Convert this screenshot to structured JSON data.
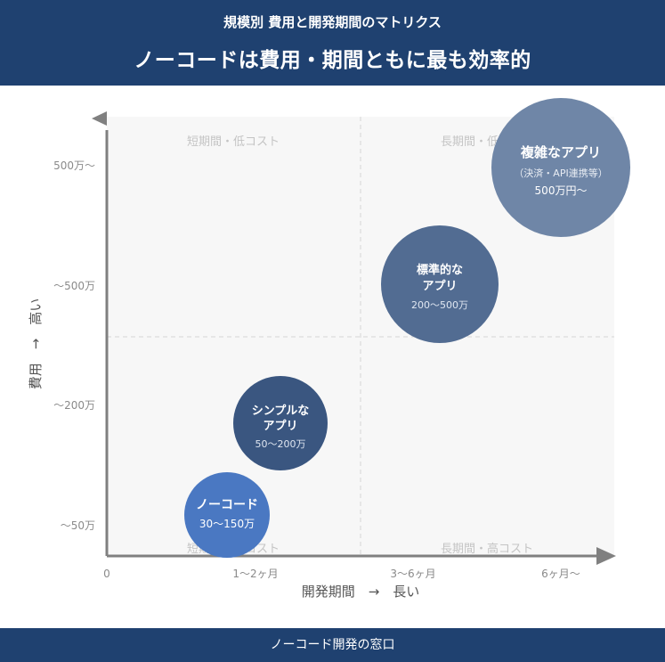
{
  "header": {
    "subtitle": "規模別 費用と開発期間のマトリクス",
    "title": "ノーコードは費用・期間ともに最も効率的"
  },
  "footer": {
    "text": "ノーコード開発の窓口"
  },
  "chart_data": {
    "type": "scatter",
    "xlabel": "開発期間　→　長い",
    "ylabel": "費用　→　高い",
    "x_ticks": [
      "0",
      "1〜2ヶ月",
      "3〜6ヶ月",
      "6ヶ月〜"
    ],
    "y_ticks": [
      "〜50万",
      "〜200万",
      "〜500万",
      "500万〜"
    ],
    "quadrants": {
      "top_left": "短期間・低コスト",
      "top_right": "長期間・低コスト",
      "bottom_left": "短期間・低コスト",
      "bottom_right": "長期間・高コスト"
    },
    "grid": true,
    "points": [
      {
        "name": "ノーコード",
        "value_label": "30〜150万",
        "x": 0.85,
        "y": 1.1,
        "color": "#4a78c2"
      },
      {
        "name": "シンプルなアプリ",
        "value_label": "50〜200万",
        "x": 1.3,
        "y": 2.1,
        "color": "#3a5680"
      },
      {
        "name": "標準的なアプリ",
        "value_label": "200〜500万",
        "x": 2.7,
        "y": 3.45,
        "color": "#526c92"
      },
      {
        "name": "複雑なアプリ",
        "note": "（決済・API連携等）",
        "value_label": "500万円〜",
        "x": 3.65,
        "y": 4.45,
        "color": "#6f86a7"
      }
    ],
    "colors": {
      "axis": "#808080",
      "quadrant_bg": "#f7f7f7",
      "grid": "#e3e3e3",
      "header": "#1f4170"
    }
  }
}
